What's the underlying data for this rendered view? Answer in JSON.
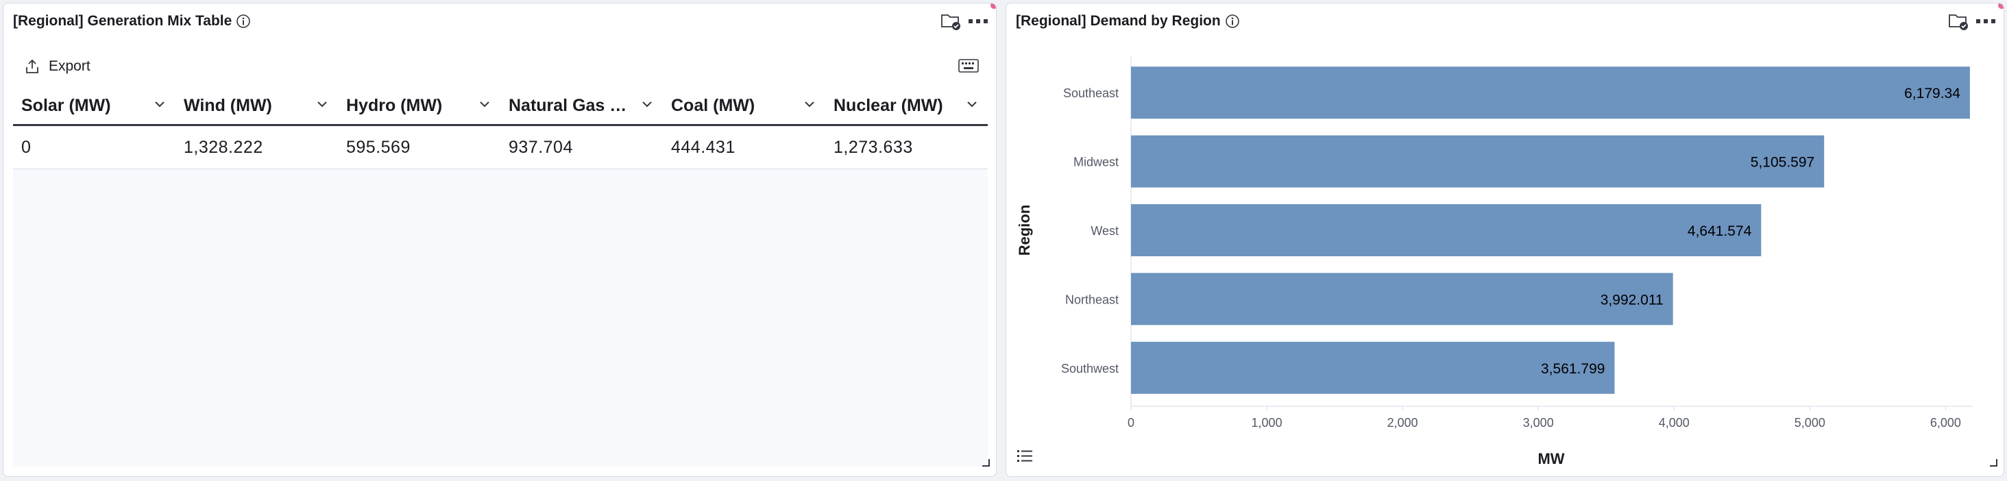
{
  "table_panel": {
    "title": "[Regional] Generation Mix Table",
    "export_label": "Export",
    "columns": [
      "Solar (MW)",
      "Wind (MW)",
      "Hydro (MW)",
      "Natural Gas (MW)",
      "Coal (MW)",
      "Nuclear (MW)"
    ],
    "rows": [
      [
        "0",
        "1,328.222",
        "595.569",
        "937.704",
        "444.431",
        "1,273.633"
      ]
    ]
  },
  "chart_panel": {
    "title": "[Regional] Demand by Region"
  },
  "icons": {
    "info": "info-icon",
    "folder": "folder-check-icon",
    "menu": "ellipsis-icon",
    "export": "export-icon",
    "keyboard": "keyboard-icon",
    "chevron": "chevron-down-icon",
    "legend": "legend-list-icon",
    "resize": "resize-grip-icon"
  },
  "colors": {
    "bar": "#6d93bf",
    "notify_dot": "#e7679b",
    "header_rule": "#343741"
  },
  "chart_data": {
    "type": "bar",
    "orientation": "horizontal",
    "categories": [
      "Southeast",
      "Midwest",
      "West",
      "Northeast",
      "Southwest"
    ],
    "values": [
      6179.34,
      5105.597,
      4641.574,
      3992.011,
      3561.799
    ],
    "value_labels": [
      "6,179.34",
      "5,105.597",
      "4,641.574",
      "3,992.011",
      "3,561.799"
    ],
    "xlabel": "MW",
    "ylabel": "Region",
    "xlim": [
      0,
      6200
    ],
    "xticks": [
      0,
      1000,
      2000,
      3000,
      4000,
      5000,
      6000
    ],
    "xtick_labels": [
      "0",
      "1,000",
      "2,000",
      "3,000",
      "4,000",
      "5,000",
      "6,000"
    ],
    "grid": false
  }
}
